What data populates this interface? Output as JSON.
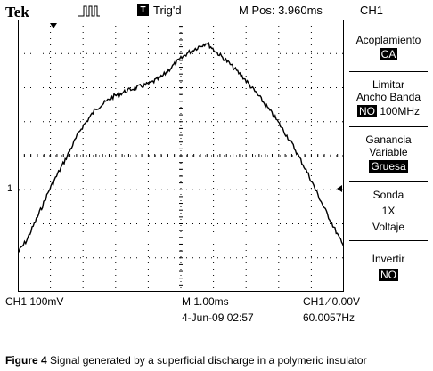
{
  "header": {
    "brand": "Tek",
    "trigger_box": "T",
    "trigger_status": "Trig'd",
    "m_pos": "M Pos: 3.960ms",
    "channel": "CH1"
  },
  "menu": {
    "acoplamiento": {
      "label": "Acoplamiento",
      "value": "CA"
    },
    "limitar": {
      "line1": "Limitar",
      "line2": "Ancho Banda",
      "value": "NO",
      "extra": "100MHz"
    },
    "ganancia": {
      "line1": "Ganancia",
      "line2": "Variable",
      "value": "Gruesa"
    },
    "sonda": {
      "line1": "Sonda",
      "line2": "1X",
      "line3": "Voltaje"
    },
    "invertir": {
      "label": "Invertir",
      "value": "NO"
    }
  },
  "status": {
    "ch_scale": "CH1  100mV",
    "time_scale": "M 1.00ms",
    "trigger": "CH1 ∕ 0.00V",
    "date": "4-Jun-09 02:57",
    "frequency": "60.0057Hz"
  },
  "markers": {
    "ground": "1→"
  },
  "caption": {
    "label": "Figure 4",
    "text": "Signal generated by a superficial discharge in a polymeric insulator"
  },
  "colors": {
    "trace": "#000000",
    "background": "#ffffff",
    "grid": "#000000"
  }
}
